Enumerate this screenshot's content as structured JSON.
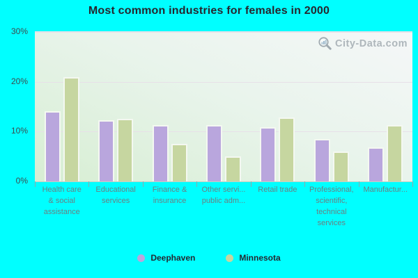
{
  "title": "Most common industries for females in 2000",
  "watermark": "City-Data.com",
  "colors": {
    "background": "#00ffff",
    "deephaven_bar": "#b9a6dd",
    "minnesota_bar": "#c6d6a0",
    "plot_gradient_top": "#f5f7f8",
    "plot_gradient_bottom": "#d7eed3",
    "gridline": "#e7e0e8",
    "x_axis_text": "#6b7f82",
    "y_axis_text": "#3d4a4d",
    "title_text": "#26262e",
    "watermark_text": "#aeb6bb"
  },
  "y_axis": {
    "tick_labels": [
      "30%",
      "20%",
      "10%",
      "0%"
    ]
  },
  "chart_data": {
    "type": "bar",
    "title": "Most common industries for females in 2000",
    "categories": [
      "Health care\n& social\nassistance",
      "Educational\nservices",
      "Finance &\ninsurance",
      "Other servi...\npublic adm...",
      "Retail trade",
      "Professional,\nscientific,\ntechnical\nservices",
      "Manufactur..."
    ],
    "series": [
      {
        "name": "Deephaven",
        "color": "#b9a6dd",
        "values": [
          13.8,
          12.0,
          11.0,
          11.0,
          10.6,
          8.3,
          6.5
        ]
      },
      {
        "name": "Minnesota",
        "color": "#c6d6a0",
        "values": [
          20.7,
          12.3,
          7.3,
          4.8,
          12.5,
          5.7,
          11.0
        ]
      }
    ],
    "ylabel": "",
    "xlabel": "",
    "ylim": [
      0,
      30
    ],
    "y_tick_step": 10,
    "grid": "horizontal",
    "legend_position": "bottom"
  },
  "legend": {
    "items": [
      {
        "label": "Deephaven",
        "color": "#b9a6dd"
      },
      {
        "label": "Minnesota",
        "color": "#c6d6a0"
      }
    ]
  }
}
